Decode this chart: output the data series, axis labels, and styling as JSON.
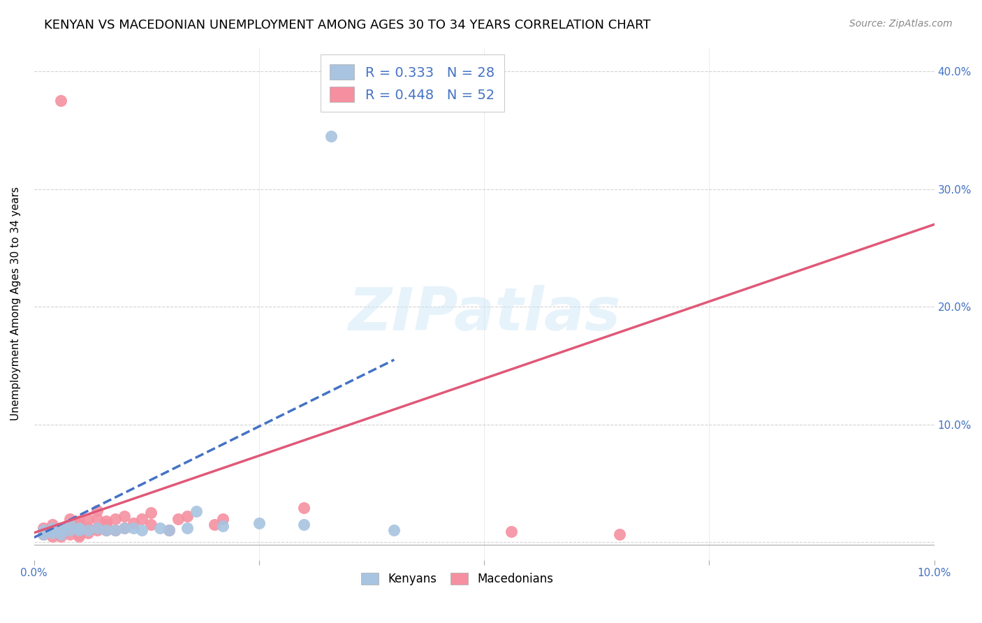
{
  "title": "KENYAN VS MACEDONIAN UNEMPLOYMENT AMONG AGES 30 TO 34 YEARS CORRELATION CHART",
  "source": "Source: ZipAtlas.com",
  "ylabel": "Unemployment Among Ages 30 to 34 years",
  "xlim": [
    0.0,
    0.1
  ],
  "ylim": [
    -0.015,
    0.42
  ],
  "kenyan_R": 0.333,
  "kenyan_N": 28,
  "macedonian_R": 0.448,
  "macedonian_N": 52,
  "kenyan_color": "#a8c4e0",
  "macedonian_color": "#f590a0",
  "kenyan_line_color": "#4472c4",
  "macedonian_line_color": "#e05878",
  "background_color": "#ffffff",
  "grid_color": "#c8c8c8",
  "kenyan_scatter_x": [
    0.001,
    0.001,
    0.002,
    0.002,
    0.002,
    0.003,
    0.003,
    0.003,
    0.004,
    0.004,
    0.005,
    0.005,
    0.006,
    0.007,
    0.008,
    0.009,
    0.01,
    0.011,
    0.012,
    0.014,
    0.015,
    0.017,
    0.018,
    0.021,
    0.025,
    0.03,
    0.033,
    0.04
  ],
  "kenyan_scatter_y": [
    0.007,
    0.01,
    0.008,
    0.01,
    0.012,
    0.007,
    0.01,
    0.012,
    0.01,
    0.015,
    0.01,
    0.012,
    0.01,
    0.012,
    0.01,
    0.01,
    0.012,
    0.012,
    0.01,
    0.012,
    0.01,
    0.012,
    0.026,
    0.014,
    0.016,
    0.015,
    0.345,
    0.01
  ],
  "macedonian_scatter_x": [
    0.001,
    0.001,
    0.001,
    0.002,
    0.002,
    0.002,
    0.002,
    0.002,
    0.003,
    0.003,
    0.003,
    0.003,
    0.003,
    0.003,
    0.003,
    0.004,
    0.004,
    0.004,
    0.004,
    0.004,
    0.005,
    0.005,
    0.005,
    0.005,
    0.005,
    0.006,
    0.006,
    0.006,
    0.006,
    0.007,
    0.007,
    0.007,
    0.007,
    0.008,
    0.008,
    0.008,
    0.009,
    0.009,
    0.01,
    0.01,
    0.011,
    0.012,
    0.013,
    0.013,
    0.015,
    0.016,
    0.017,
    0.02,
    0.021,
    0.03,
    0.053,
    0.065
  ],
  "macedonian_scatter_y": [
    0.007,
    0.01,
    0.012,
    0.005,
    0.01,
    0.01,
    0.012,
    0.015,
    0.005,
    0.007,
    0.008,
    0.01,
    0.01,
    0.012,
    0.375,
    0.007,
    0.01,
    0.01,
    0.015,
    0.02,
    0.005,
    0.007,
    0.01,
    0.015,
    0.018,
    0.008,
    0.01,
    0.012,
    0.02,
    0.01,
    0.012,
    0.02,
    0.027,
    0.01,
    0.015,
    0.018,
    0.01,
    0.02,
    0.012,
    0.022,
    0.016,
    0.02,
    0.015,
    0.025,
    0.01,
    0.02,
    0.022,
    0.015,
    0.02,
    0.029,
    0.009,
    0.007
  ],
  "legend_text_color": "#4472c4",
  "axis_tick_color": "#4472c4",
  "title_font_size": 13,
  "source_font_size": 10,
  "axis_label_font_size": 11,
  "tick_font_size": 11,
  "watermark": "ZIPatlas"
}
